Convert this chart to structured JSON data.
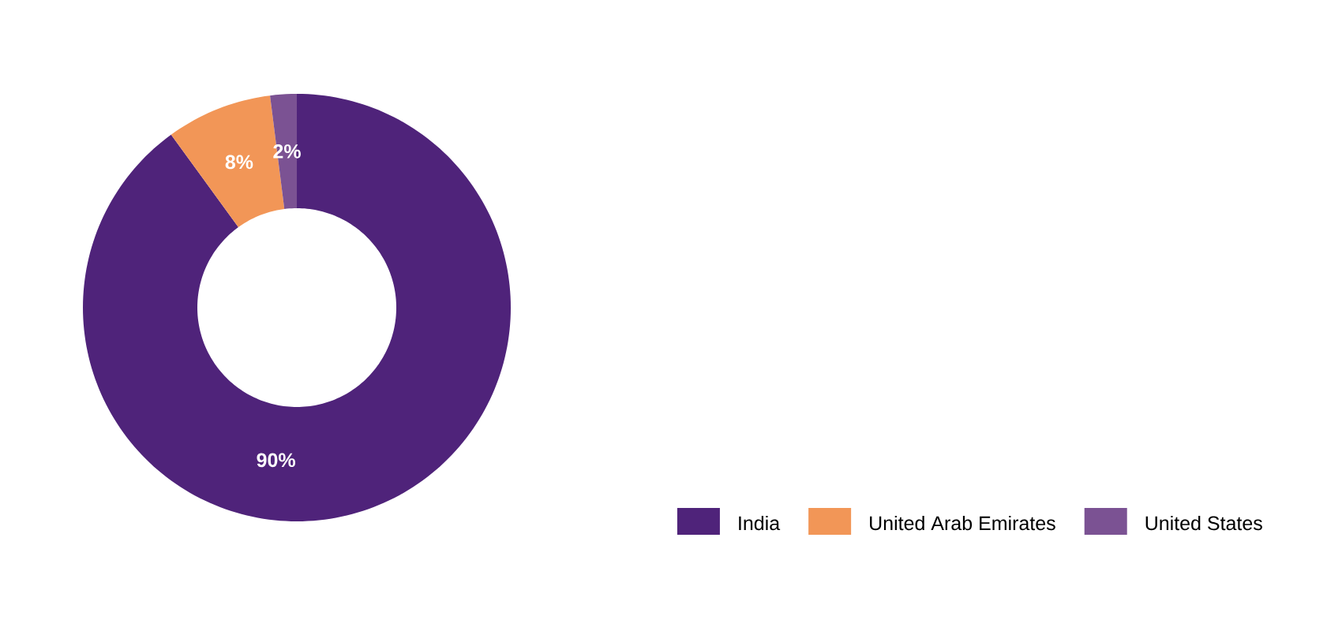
{
  "chart_data": {
    "type": "donut",
    "categories": [
      "India",
      "United Arab Emirates",
      "United States"
    ],
    "values": [
      90,
      8,
      2
    ],
    "value_labels": [
      "90%",
      "8%",
      "2%"
    ],
    "colors": [
      "#4f237a",
      "#f29657",
      "#7b5293"
    ],
    "legend": "bottom right"
  }
}
